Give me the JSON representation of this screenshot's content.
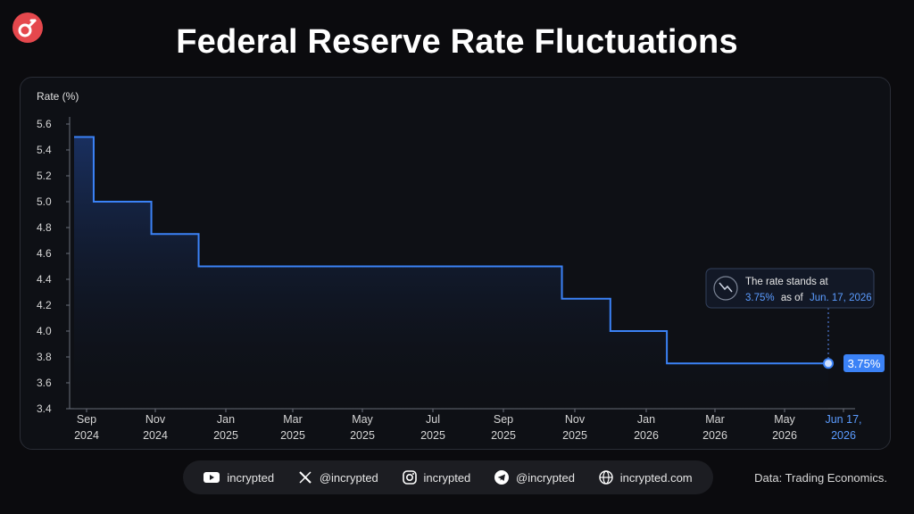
{
  "header": {
    "title": "Federal Reserve Rate Fluctuations"
  },
  "chart_data": {
    "type": "line",
    "step": true,
    "ylabel": "Rate (%)",
    "ylim": [
      3.4,
      5.6
    ],
    "yticks": [
      "5.6",
      "5.4",
      "5.2",
      "5.0",
      "4.8",
      "4.6",
      "4.4",
      "4.2",
      "4.0",
      "3.8",
      "3.6",
      "3.4"
    ],
    "xticks": [
      [
        "Sep",
        "2024"
      ],
      [
        "Nov",
        "2024"
      ],
      [
        "Jan",
        "2025"
      ],
      [
        "Mar",
        "2025"
      ],
      [
        "May",
        "2025"
      ],
      [
        "Jul",
        "2025"
      ],
      [
        "Sep",
        "2025"
      ],
      [
        "Nov",
        "2025"
      ],
      [
        "Jan",
        "2026"
      ],
      [
        "Mar",
        "2026"
      ],
      [
        "May",
        "2026"
      ],
      [
        "Jun 17,",
        "2026"
      ]
    ],
    "x": [
      "2024-09-01",
      "2024-09-18",
      "2024-11-07",
      "2024-12-18",
      "2025-10-29",
      "2025-12-10",
      "2026-01-28",
      "2026-06-17"
    ],
    "values": [
      5.5,
      5.0,
      4.75,
      4.5,
      4.25,
      4.0,
      3.75,
      3.75
    ],
    "grid": false,
    "line_color": "#3b82f6",
    "callout": {
      "text_line1": "The rate stands at",
      "value": "3.75%",
      "text_mid": "as of",
      "date": "Jun. 17, 2026"
    },
    "end_label": "3.75%"
  },
  "footer": {
    "youtube": "incrypted",
    "x": "@incrypted",
    "instagram": "incrypted",
    "telegram": "@incrypted",
    "website": "incrypted.com",
    "source": "Data: Trading Economics."
  }
}
